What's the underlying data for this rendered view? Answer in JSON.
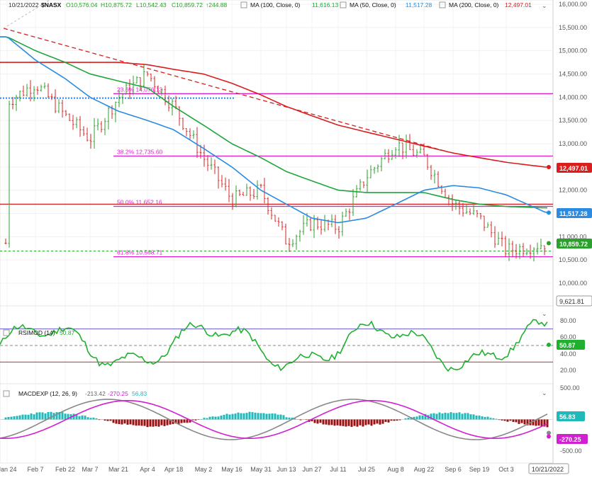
{
  "header": {
    "date": "10/21/2022",
    "symbol": "$NASX",
    "o": "O10,576.04",
    "h": "H10,875.72",
    "l": "L10,542.43",
    "c": "C10,859.72",
    "chg": "↑244.88",
    "ma100": "MA (100, Close, 0)",
    "ma100_val": "11,616.13",
    "ma50": "MA (50, Close, 0)",
    "ma50_val": "11,517.28",
    "ma200": "MA (200, Close, 0)",
    "ma200_val": "12,497.01"
  },
  "colors": {
    "up": "#2ca02c",
    "down": "#d62728",
    "ma50": "#2b8be0",
    "ma100": "#1fa63a",
    "ma200": "#d81e1e",
    "fib": "#e020d0",
    "rsi": "#20b030",
    "macd": "#888888",
    "signal": "#d020d0",
    "hist_pos": "#20b8b8",
    "hist_neg": "#9a1010"
  },
  "price_axis": {
    "ticks": [
      "16,000.00",
      "15,500.00",
      "15,000.00",
      "14,500.00",
      "14,000.00",
      "13,500.00",
      "13,000.00",
      "12,500.00",
      "12,000.00",
      "11,500.00",
      "11,000.00",
      "10,500.00",
      "10,000.00"
    ],
    "min": 9600,
    "max": 16000
  },
  "fib_levels": [
    {
      "label": "23.6% 14,076.13",
      "value": 14076.13
    },
    {
      "label": "38.2% 12,735.60",
      "value": 12735.6
    },
    {
      "label": "50.0% 11,652.16",
      "value": 11652.16
    },
    {
      "label": "61.8% 10,568.71",
      "value": 10568.71
    }
  ],
  "price_badges": {
    "ma200": "12,497.01",
    "ma50": "11,517.28",
    "close": "10,859.72",
    "low": "9,621.81"
  },
  "rsi": {
    "title": "RSIMOD (14)",
    "value": "50.87",
    "ticks": [
      "80.00",
      "60.00",
      "40.00",
      "20.00"
    ]
  },
  "macd": {
    "title": "MACDEXP (12, 26, 9)",
    "v1": "-213.42",
    "v2": "-270.25",
    "v3": "56.83",
    "badge_hist": "56.83",
    "badge_signal": "-270.25",
    "ticks": [
      "500.00",
      "0.00",
      "-500.00"
    ]
  },
  "x_axis": {
    "labels": [
      "Jan 24",
      "Feb 7",
      "Feb 22",
      "Mar 7",
      "Mar 21",
      "Apr 4",
      "Apr 18",
      "May 2",
      "May 16",
      "May 31",
      "Jun 13",
      "Jun 27",
      "Jul 11",
      "Jul 25",
      "Aug 8",
      "Aug 22",
      "Sep 6",
      "Sep 19",
      "Oct 3"
    ],
    "current": "10/21/2022"
  },
  "chart_data": {
    "type": "candlestick",
    "title": "$NASX",
    "x": [
      "Jan 24",
      "Feb 7",
      "Feb 22",
      "Mar 7",
      "Mar 21",
      "Apr 4",
      "Apr 18",
      "May 2",
      "May 16",
      "May 31",
      "Jun 13",
      "Jun 27",
      "Jul 11",
      "Jul 25",
      "Aug 8",
      "Aug 22",
      "Sep 6",
      "Sep 19",
      "Oct 3",
      "Oct 21"
    ],
    "close": [
      13900,
      14300,
      13600,
      13100,
      14000,
      14500,
      13800,
      12700,
      11800,
      12000,
      10900,
      11300,
      11200,
      12300,
      13000,
      12700,
      11700,
      11400,
      10700,
      10860
    ],
    "ma50": [
      15300,
      14800,
      14400,
      14000,
      13700,
      13500,
      13300,
      12900,
      12500,
      12000,
      11700,
      11400,
      11300,
      11400,
      11700,
      12000,
      12100,
      12050,
      11900,
      11520
    ],
    "ma100": [
      15300,
      15000,
      14750,
      14500,
      14350,
      14200,
      13800,
      13400,
      13000,
      12700,
      12400,
      12200,
      12000,
      11950,
      11950,
      11950,
      11800,
      11700,
      11650,
      11620
    ],
    "ma200": [
      14750,
      14750,
      14750,
      14750,
      14750,
      14700,
      14600,
      14500,
      14300,
      14050,
      13800,
      13600,
      13400,
      13250,
      13100,
      12950,
      12800,
      12700,
      12600,
      12497
    ],
    "ylim": [
      9600,
      16000
    ]
  }
}
